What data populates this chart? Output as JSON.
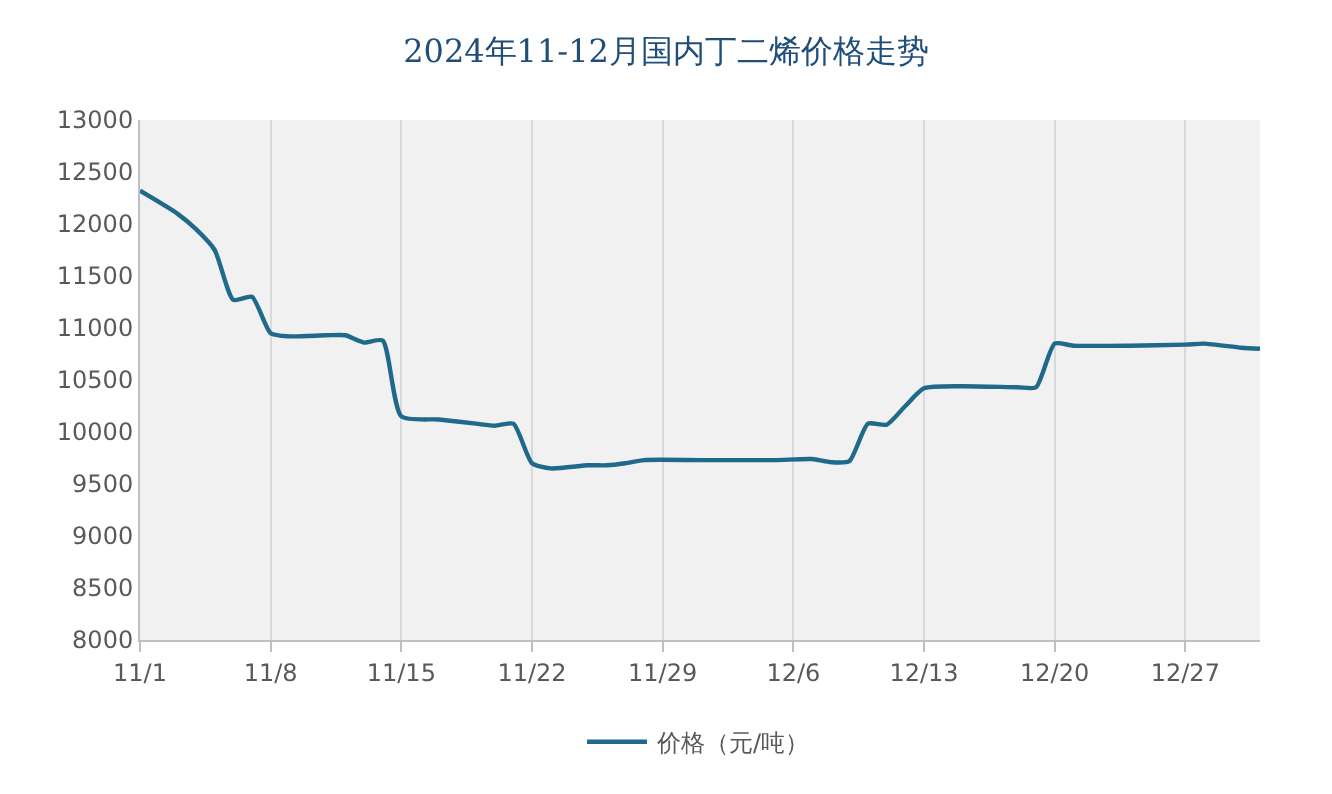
{
  "chart_data": {
    "type": "line",
    "title": "2024年11-12月国内丁二烯价格走势",
    "x": [
      "2024-11-01",
      "2024-11-03",
      "2024-11-04",
      "2024-11-05",
      "2024-11-06",
      "2024-11-07",
      "2024-11-08",
      "2024-11-09",
      "2024-11-11",
      "2024-11-12",
      "2024-11-13",
      "2024-11-14",
      "2024-11-15",
      "2024-11-17",
      "2024-11-19",
      "2024-11-20",
      "2024-11-21",
      "2024-11-22",
      "2024-11-23",
      "2024-11-25",
      "2024-11-26",
      "2024-11-27",
      "2024-11-28",
      "2024-12-01",
      "2024-12-05",
      "2024-12-07",
      "2024-12-08",
      "2024-12-09",
      "2024-12-10",
      "2024-12-11",
      "2024-12-12",
      "2024-12-13",
      "2024-12-15",
      "2024-12-18",
      "2024-12-19",
      "2024-12-20",
      "2024-12-21",
      "2024-12-24",
      "2024-12-27",
      "2024-12-28",
      "2024-12-30",
      "2024-12-31"
    ],
    "series": [
      {
        "name": "价格（元/吨）",
        "color": "#1f6a8a",
        "values": [
          12320,
          12100,
          11950,
          11750,
          11270,
          11300,
          10950,
          10920,
          10930,
          10930,
          10860,
          10880,
          10150,
          10120,
          10080,
          10060,
          10080,
          9700,
          9650,
          9680,
          9680,
          9700,
          9730,
          9730,
          9730,
          9740,
          9710,
          9720,
          10080,
          10070,
          10250,
          10420,
          10440,
          10430,
          10430,
          10850,
          10830,
          10830,
          10840,
          10850,
          10810,
          10800
        ]
      }
    ],
    "xlim": [
      "2024-11-01",
      "2024-12-31"
    ],
    "xticks": [
      {
        "value": "2024-11-01",
        "label": "11/1"
      },
      {
        "value": "2024-11-08",
        "label": "11/8"
      },
      {
        "value": "2024-11-15",
        "label": "11/15"
      },
      {
        "value": "2024-11-22",
        "label": "11/22"
      },
      {
        "value": "2024-11-29",
        "label": "11/29"
      },
      {
        "value": "2024-12-06",
        "label": "12/6"
      },
      {
        "value": "2024-12-13",
        "label": "12/13"
      },
      {
        "value": "2024-12-20",
        "label": "12/20"
      },
      {
        "value": "2024-12-27",
        "label": "12/27"
      }
    ],
    "ylim": [
      8000,
      13000
    ],
    "yticks": [
      8000,
      8500,
      9000,
      9500,
      10000,
      10500,
      11000,
      11500,
      12000,
      12500,
      13000
    ],
    "grid": "x",
    "legend": "bottom",
    "marker": "none",
    "line_style": "solid"
  }
}
